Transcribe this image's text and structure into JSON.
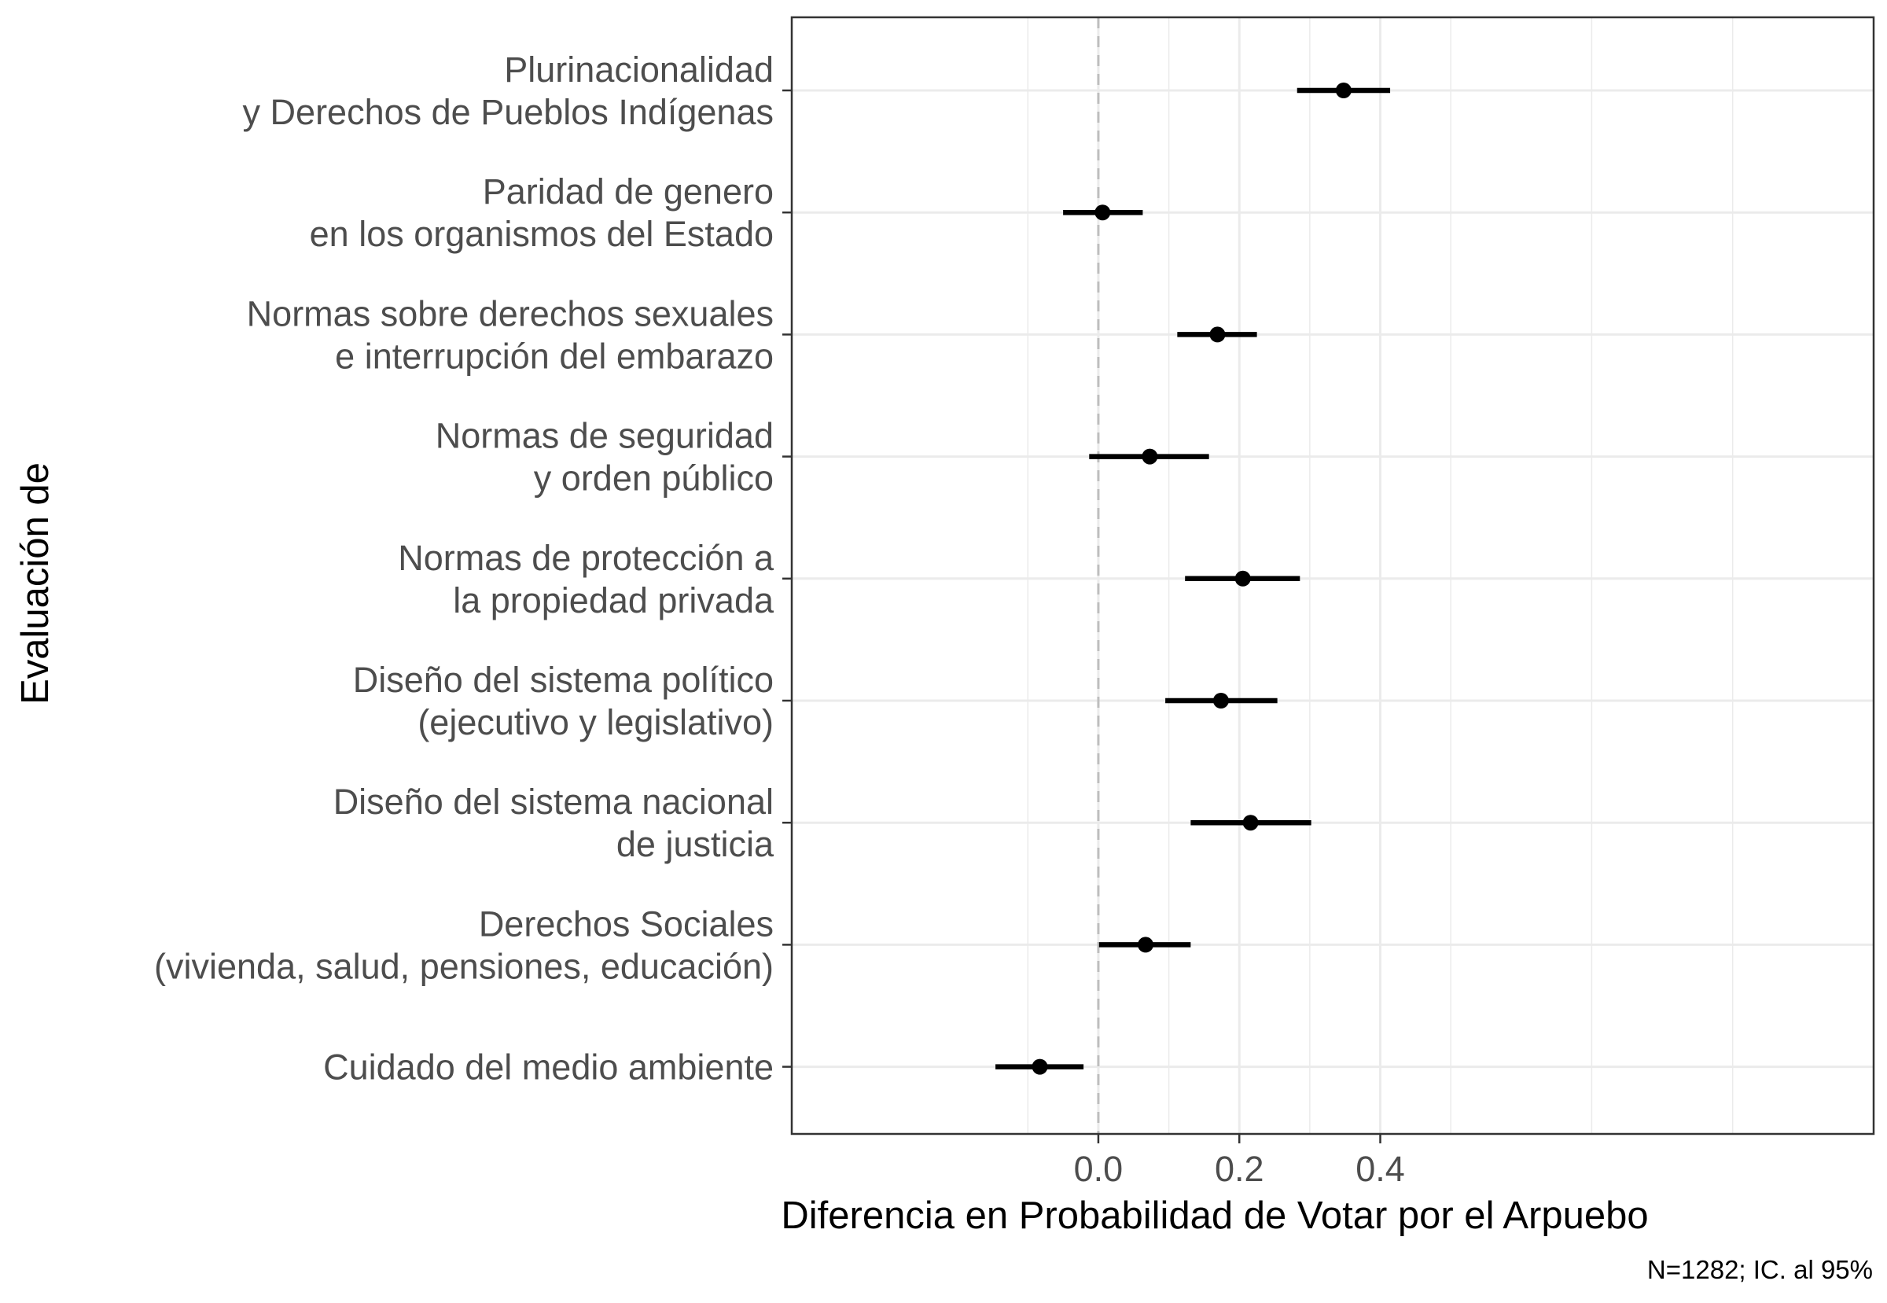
{
  "chart_data": {
    "type": "forest",
    "xlabel": "Diferencia en Probabilidad de Votar por el Arpuebo",
    "ylabel": "Evaluación de",
    "caption": "N=1282; IC. al 95%",
    "xlim": [
      -0.435,
      1.1
    ],
    "x_ticks": [
      0.0,
      0.2,
      0.4
    ],
    "x_tick_labels": [
      "0.0",
      "0.2",
      "0.4"
    ],
    "reference_line": 0,
    "grid": true,
    "categories": [
      [
        "Plurinacionalidad",
        "y Derechos de Pueblos Indígenas"
      ],
      [
        "Paridad de genero",
        "en los organismos del Estado"
      ],
      [
        "Normas sobre derechos sexuales",
        "e interrupción del embarazo"
      ],
      [
        "Normas de seguridad",
        "y orden público"
      ],
      [
        "Normas de protección a",
        "la propiedad privada"
      ],
      [
        "Diseño del sistema político",
        "(ejecutivo y legislativo)"
      ],
      [
        "Diseño del sistema nacional",
        "de justicia"
      ],
      [
        "Derechos Sociales",
        "(vivienda, salud, pensiones, educación)"
      ],
      [
        "Cuidado del medio ambiente"
      ]
    ],
    "estimates": [
      0.348,
      0.006,
      0.169,
      0.073,
      0.205,
      0.174,
      0.216,
      0.067,
      -0.083
    ],
    "ci_low": [
      0.282,
      -0.05,
      0.112,
      -0.013,
      0.123,
      0.095,
      0.131,
      0.001,
      -0.146
    ],
    "ci_high": [
      0.414,
      0.063,
      0.225,
      0.157,
      0.286,
      0.254,
      0.302,
      0.131,
      -0.021
    ],
    "colors": {
      "point": "#000000",
      "interval": "#000000",
      "grid": "#ebebeb",
      "reference": "#bebebe",
      "border": "#333333"
    }
  }
}
